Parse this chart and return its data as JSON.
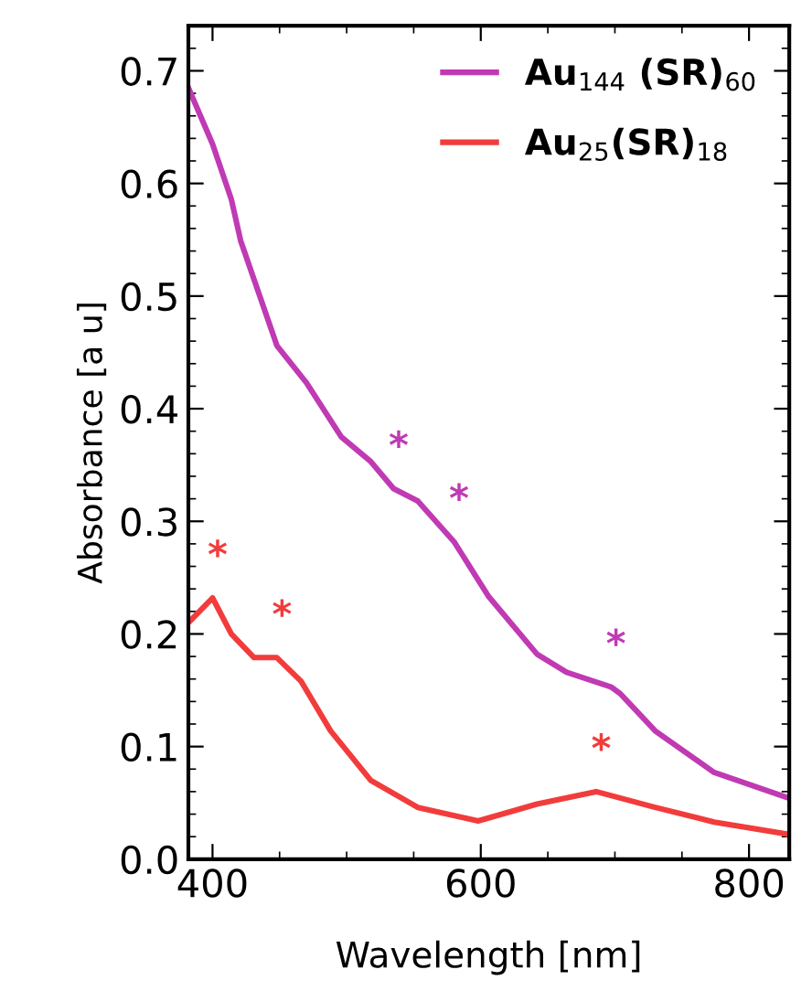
{
  "chart_data": {
    "type": "line",
    "xlabel": "Wavelength [nm]",
    "ylabel": "Absorbance [a u]",
    "xlim": [
      382,
      830
    ],
    "ylim": [
      0,
      0.74
    ],
    "xticks": [
      400,
      600,
      800
    ],
    "yticks": [
      {
        "value": 0,
        "label": "0.0"
      },
      0.1,
      0.2,
      0.3,
      0.4,
      0.5,
      0.6,
      0.7
    ],
    "legend": "top right",
    "grid": false,
    "line_style": "solid",
    "series": [
      {
        "name": "Au$_{144}$ (SR)$_{60}$",
        "color": "#c03ab4",
        "x": [
          382,
          400,
          414,
          421,
          448,
          470,
          496,
          518,
          535,
          553,
          580,
          606,
          642,
          664,
          697,
          704,
          730,
          774,
          830
        ],
        "values": [
          0.685,
          0.635,
          0.586,
          0.549,
          0.456,
          0.423,
          0.375,
          0.353,
          0.329,
          0.318,
          0.282,
          0.233,
          0.182,
          0.166,
          0.153,
          0.147,
          0.114,
          0.077,
          0.054
        ]
      },
      {
        "name": "Au$_{25}$(SR)$_{18}$",
        "color": "#f23c3c",
        "x": [
          382,
          400,
          414,
          431,
          448,
          466,
          488,
          518,
          553,
          598,
          642,
          686,
          730,
          774,
          830
        ],
        "values": [
          0.21,
          0.232,
          0.2,
          0.179,
          0.179,
          0.158,
          0.114,
          0.07,
          0.046,
          0.034,
          0.049,
          0.06,
          0.046,
          0.033,
          0.022
        ]
      }
    ],
    "annotations": [
      {
        "text": "*",
        "x": 535,
        "y": 0.329
      },
      {
        "text": "*",
        "x": 580,
        "y": 0.282
      },
      {
        "text": "*",
        "x": 697,
        "y": 0.153
      },
      {
        "text": "*",
        "x": 400,
        "y": 0.232
      },
      {
        "text": "*",
        "x": 448,
        "y": 0.179
      },
      {
        "text": "*",
        "x": 686,
        "y": 0.06
      }
    ]
  }
}
